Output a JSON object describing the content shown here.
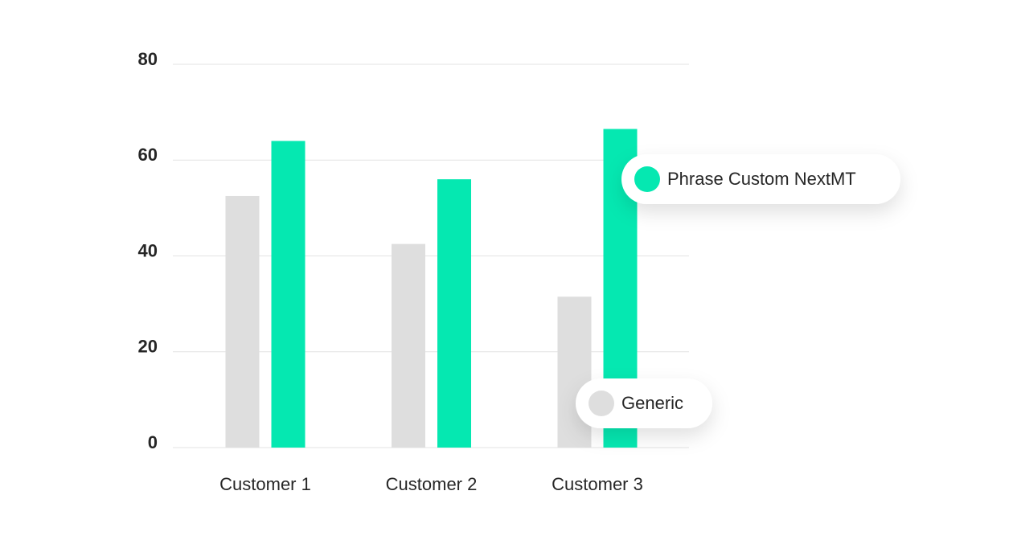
{
  "chart_data": {
    "type": "bar",
    "categories": [
      "Customer 1",
      "Customer 2",
      "Customer 3"
    ],
    "series": [
      {
        "name": "Generic",
        "color": "#dedede",
        "values": [
          52.5,
          42.5,
          31.5
        ]
      },
      {
        "name": "Phrase Custom NextMT",
        "color": "#05e8b1",
        "values": [
          64,
          56,
          66.5
        ]
      }
    ],
    "ylim": [
      0,
      80
    ],
    "yticks": [
      0,
      20,
      40,
      60,
      80
    ],
    "grid": true
  }
}
